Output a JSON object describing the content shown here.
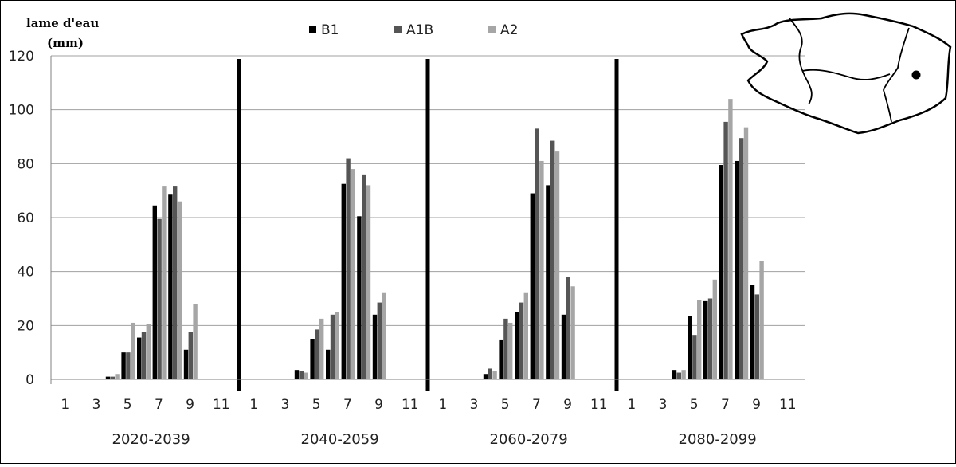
{
  "chart_data": {
    "type": "bar",
    "ylabel": "lame d'eau (mm)",
    "ylabel_lines": [
      "lame d'eau",
      "(mm)"
    ],
    "ylim": [
      0,
      120
    ],
    "yticks": [
      "0",
      "20",
      "40",
      "60",
      "80",
      "100",
      "120"
    ],
    "xticks": [
      "1",
      "3",
      "5",
      "7",
      "9",
      "11"
    ],
    "grid": true,
    "legend_position": "top",
    "months": [
      1,
      2,
      3,
      4,
      5,
      6,
      7,
      8,
      9,
      10,
      11,
      12
    ],
    "series_names": [
      "B1",
      "A1B",
      "A2"
    ],
    "colors": {
      "B1": "#000000",
      "A1B": "#555555",
      "A2": "#a6a6a6"
    },
    "panels": [
      {
        "label": "2020-2039",
        "series": [
          {
            "name": "B1",
            "values": [
              0,
              0,
              0,
              1,
              10,
              15.5,
              64.5,
              68.5,
              11,
              0,
              0,
              0
            ]
          },
          {
            "name": "A1B",
            "values": [
              0,
              0,
              0,
              1,
              10,
              17.5,
              59.5,
              71.5,
              17.5,
              0,
              0,
              0
            ]
          },
          {
            "name": "A2",
            "values": [
              0,
              0,
              0,
              2,
              21,
              20.5,
              71.5,
              66,
              28,
              0,
              0,
              0
            ]
          }
        ]
      },
      {
        "label": "2040-2059",
        "series": [
          {
            "name": "B1",
            "values": [
              0,
              0,
              0,
              3.5,
              15,
              11,
              72.5,
              60.5,
              24,
              0,
              0,
              0
            ]
          },
          {
            "name": "A1B",
            "values": [
              0,
              0,
              0,
              3,
              18.5,
              24,
              82,
              76,
              28.5,
              0,
              0,
              0
            ]
          },
          {
            "name": "A2",
            "values": [
              0,
              0,
              0,
              2.5,
              22.5,
              25,
              78,
              72,
              32,
              0,
              0,
              0
            ]
          }
        ]
      },
      {
        "label": "2060-2079",
        "series": [
          {
            "name": "B1",
            "values": [
              0,
              0,
              0,
              2,
              14.5,
              25,
              69,
              72,
              24,
              0,
              0,
              0
            ]
          },
          {
            "name": "A1B",
            "values": [
              0,
              0,
              0,
              4,
              22.5,
              28.5,
              93,
              88.5,
              38,
              0,
              0,
              0
            ]
          },
          {
            "name": "A2",
            "values": [
              0,
              0,
              0,
              3,
              21,
              32,
              81,
              84.5,
              34.5,
              0,
              0,
              0
            ]
          }
        ]
      },
      {
        "label": "2080-2099",
        "series": [
          {
            "name": "B1",
            "values": [
              0,
              0,
              0,
              3.5,
              23.5,
              29,
              79.5,
              81,
              35,
              0,
              0,
              0
            ]
          },
          {
            "name": "A1B",
            "values": [
              0,
              0,
              0,
              2.5,
              16.5,
              30,
              95.5,
              89.5,
              31.5,
              0,
              0,
              0
            ]
          },
          {
            "name": "A2",
            "values": [
              0,
              0,
              0,
              3.5,
              29.5,
              37,
              104,
              93.5,
              44,
              0,
              0,
              0
            ]
          }
        ]
      }
    ]
  },
  "inset_map": {
    "marker_icon": "location-dot-icon"
  }
}
